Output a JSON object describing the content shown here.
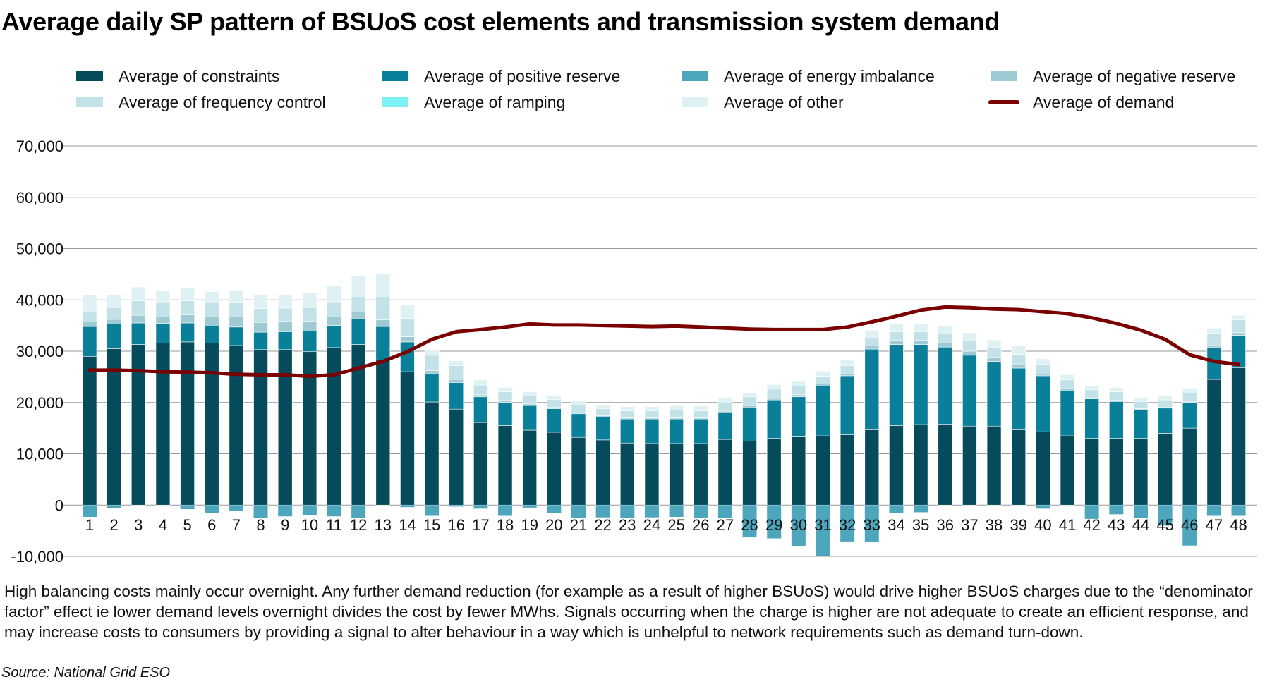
{
  "title": "Average daily SP pattern of BSUoS cost elements and transmission system demand",
  "caption": "High balancing costs mainly occur overnight. Any further demand reduction (for example as a result of higher BSUoS) would drive higher BSUoS charges due to the “denominator factor” effect ie lower demand levels overnight divides the cost by fewer MWhs. Signals occurring when the charge is higher are not adequate to create an efficient response, and may increase costs to consumers by providing a signal to alter behaviour in a way which is unhelpful to network requirements such as demand turn-down.",
  "source": "Source: National Grid ESO",
  "chart_data": {
    "type": "bar",
    "stacked": true,
    "grid": true,
    "legend_position": "top",
    "ylim": [
      -10000,
      70000
    ],
    "yticks": [
      "70,000",
      "60,000",
      "50,000",
      "40,000",
      "30,000",
      "20,000",
      "10,000",
      "0",
      "-10,000"
    ],
    "ytick_values": [
      70000,
      60000,
      50000,
      40000,
      30000,
      20000,
      10000,
      0,
      -10000
    ],
    "categories": [
      "1",
      "2",
      "3",
      "4",
      "5",
      "6",
      "7",
      "8",
      "9",
      "10",
      "11",
      "12",
      "13",
      "14",
      "15",
      "16",
      "17",
      "18",
      "19",
      "20",
      "21",
      "22",
      "23",
      "24",
      "25",
      "26",
      "27",
      "28",
      "29",
      "30",
      "31",
      "32",
      "33",
      "34",
      "35",
      "36",
      "37",
      "38",
      "39",
      "40",
      "41",
      "42",
      "43",
      "44",
      "45",
      "46",
      "47",
      "48"
    ],
    "series": [
      {
        "name": "Average of constraints",
        "color": "#064b5c",
        "values": [
          29000,
          30500,
          31300,
          31600,
          31800,
          31600,
          31100,
          30300,
          30300,
          29900,
          30700,
          31300,
          28300,
          26000,
          20100,
          18700,
          16100,
          15500,
          14600,
          14200,
          13200,
          12700,
          12100,
          12000,
          12000,
          12000,
          12800,
          12500,
          13000,
          13300,
          13500,
          13700,
          14700,
          15500,
          15700,
          15800,
          15400,
          15400,
          14700,
          14300,
          13500,
          13000,
          13000,
          13000,
          14000,
          15000,
          24500,
          26800
        ]
      },
      {
        "name": "Average of positive reserve",
        "color": "#0a7f99",
        "values": [
          5800,
          4800,
          4200,
          3800,
          3700,
          3300,
          3600,
          3400,
          3500,
          4000,
          4300,
          5000,
          6500,
          5800,
          5500,
          5200,
          5000,
          4500,
          4800,
          4600,
          4600,
          4500,
          4700,
          4800,
          4800,
          4800,
          5200,
          6600,
          7500,
          7800,
          9700,
          11500,
          15700,
          15800,
          15600,
          15000,
          13800,
          12600,
          12000,
          10900,
          8900,
          7700,
          7200,
          5600,
          4900,
          5000,
          6200,
          6300
        ]
      },
      {
        "name": "Average of energy imbalance",
        "color": "#4ea6bd",
        "values": [
          0,
          0,
          0,
          0,
          0,
          0,
          0,
          0,
          0,
          0,
          0,
          0,
          0,
          0,
          0,
          0,
          0,
          0,
          0,
          0,
          0,
          0,
          0,
          0,
          0,
          0,
          0,
          0,
          0,
          0,
          0,
          0,
          0,
          0,
          0,
          0,
          0,
          0,
          0,
          0,
          0,
          0,
          0,
          0,
          0,
          0,
          0,
          0
        ]
      },
      {
        "name": "Average of negative reserve",
        "color": "#9ecbd3",
        "values": [
          900,
          900,
          1500,
          1300,
          1600,
          1800,
          2000,
          1900,
          2000,
          1900,
          1700,
          1300,
          1300,
          1000,
          600,
          600,
          400,
          400,
          300,
          300,
          200,
          200,
          200,
          200,
          200,
          200,
          300,
          300,
          300,
          400,
          400,
          400,
          600,
          800,
          800,
          800,
          800,
          800,
          800,
          300,
          300,
          200,
          200,
          200,
          200,
          200,
          400,
          500
        ]
      },
      {
        "name": "Average of frequency control",
        "color": "#c3e2e7",
        "values": [
          2100,
          2300,
          2800,
          2700,
          2700,
          2700,
          2800,
          2700,
          2600,
          2700,
          2700,
          3100,
          4600,
          3600,
          3000,
          2700,
          1900,
          1700,
          1600,
          1500,
          1500,
          1400,
          1400,
          1400,
          1500,
          1400,
          1800,
          1700,
          1800,
          1700,
          1500,
          1600,
          1600,
          1700,
          1700,
          1800,
          2000,
          1900,
          1900,
          1900,
          1700,
          1600,
          1700,
          1400,
          1400,
          1600,
          2400,
          2500
        ]
      },
      {
        "name": "Average of ramping",
        "color": "#7df1f4",
        "values": [
          0,
          0,
          0,
          0,
          0,
          0,
          0,
          0,
          0,
          0,
          0,
          0,
          0,
          0,
          0,
          0,
          0,
          0,
          0,
          0,
          0,
          0,
          0,
          0,
          0,
          0,
          0,
          0,
          0,
          0,
          0,
          0,
          0,
          0,
          0,
          0,
          0,
          0,
          0,
          0,
          0,
          0,
          0,
          0,
          0,
          0,
          0,
          0
        ]
      },
      {
        "name": "Average of other",
        "color": "#dff1f3",
        "values": [
          3100,
          2500,
          2700,
          2400,
          2500,
          2200,
          2400,
          2600,
          2600,
          2900,
          3400,
          4000,
          4400,
          2700,
          1000,
          900,
          1000,
          800,
          800,
          800,
          800,
          700,
          800,
          800,
          900,
          900,
          900,
          700,
          900,
          900,
          1000,
          1200,
          1500,
          1600,
          1500,
          1500,
          1600,
          1500,
          1600,
          1100,
          1000,
          800,
          800,
          800,
          900,
          1000,
          1000,
          900
        ]
      },
      {
        "name": "Average of demand",
        "color": "#7a0000",
        "type": "line",
        "values": [
          26300,
          26300,
          26200,
          26000,
          25900,
          25800,
          25500,
          25400,
          25400,
          25100,
          25400,
          26700,
          28000,
          29900,
          32300,
          33800,
          34200,
          34700,
          35300,
          35100,
          35100,
          35000,
          34900,
          34800,
          34900,
          34700,
          34500,
          34300,
          34200,
          34200,
          34200,
          34700,
          35700,
          36800,
          38000,
          38600,
          38500,
          38200,
          38100,
          37700,
          37300,
          36500,
          35400,
          34100,
          32300,
          29300,
          28000,
          27400
        ]
      }
    ],
    "negative_imbalance": {
      "name": "Average of energy imbalance",
      "values": [
        -2300,
        -600,
        0,
        0,
        -800,
        -1500,
        -1100,
        -2500,
        -2200,
        -2000,
        -2200,
        -2500,
        0,
        -400,
        -2100,
        -300,
        -700,
        -2100,
        -500,
        -1500,
        -2500,
        -2400,
        -2500,
        -2400,
        -2300,
        -2500,
        -2500,
        -6300,
        -6500,
        -8000,
        -10000,
        -7100,
        -7200,
        -1600,
        -1400,
        0,
        0,
        0,
        0,
        -700,
        0,
        -2700,
        -1800,
        -2500,
        -4000,
        -7900,
        -2100,
        -2100
      ]
    }
  }
}
